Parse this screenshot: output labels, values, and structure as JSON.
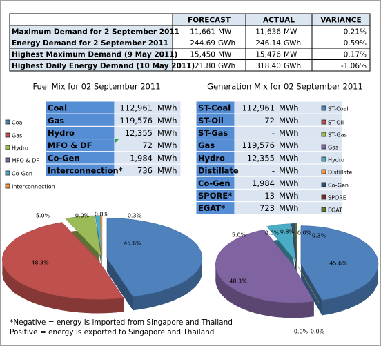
{
  "demand_table": {
    "columns": [
      "FORECAST",
      "ACTUAL",
      "VARIANCE"
    ],
    "rows": [
      [
        "Maximum Demand for 2 September 2011",
        "11,661",
        "MW",
        "11,636",
        "MW",
        "-0.21%"
      ],
      [
        "Energy Demand for 2 September 2011",
        "244.69",
        "GWh",
        "246.14",
        "GWh",
        "0.59%"
      ],
      [
        "Highest Maximum Demand (9 May 2011)",
        "15,450",
        "MW",
        "15,476",
        "MW",
        "0.17%"
      ],
      [
        "Highest Daily Energy Demand (10 May 2011)",
        "321.80",
        "GWh",
        "318.40",
        "GWh",
        "-1.06%"
      ]
    ]
  },
  "fuel_table": {
    "rows": [
      [
        "Coal",
        "112,961",
        "MWh"
      ],
      [
        "Gas",
        "119,576",
        "MWh"
      ],
      [
        "Hydro",
        "12,355",
        "MWh"
      ],
      [
        "MFO & DF",
        "72",
        "MWh"
      ],
      [
        "Co-Gen",
        "1,984",
        "MWh"
      ],
      [
        "Interconnection*",
        "736",
        "MWh"
      ]
    ]
  },
  "generation_table": {
    "rows": [
      [
        "ST-Coal",
        "112,961",
        "MWh"
      ],
      [
        "ST-Oil",
        "72",
        "MWh"
      ],
      [
        "ST-Gas",
        "-",
        "MWh"
      ],
      [
        "Gas",
        "119,576",
        "MWh"
      ],
      [
        "Hydro",
        "12,355",
        "MWh"
      ],
      [
        "Distillate",
        "-",
        "MWh"
      ],
      [
        "Co-Gen",
        "1,984",
        "MWh"
      ],
      [
        "SPORE*",
        "13",
        "MWh"
      ],
      [
        "EGAT*",
        "723",
        "MWh"
      ]
    ]
  },
  "chart_data": [
    {
      "type": "pie",
      "title": "Fuel Mix for 02 September 2011",
      "categories": [
        "Coal",
        "Gas",
        "Hydro",
        "MFO & DF",
        "Co-Gen",
        "Interconnection"
      ],
      "values": [
        45.6,
        48.3,
        5.0,
        0.0,
        0.8,
        0.3
      ],
      "value_labels": [
        "45.6%",
        "48.3%",
        "5.0%",
        "0.0%",
        "0.8%",
        "0.3%"
      ],
      "colors": [
        "#4f81bd",
        "#c0504d",
        "#9bbb59",
        "#8064a2",
        "#4bacc6",
        "#f79646"
      ]
    },
    {
      "type": "pie",
      "title": "Generation Mix for 02 September 2011",
      "categories": [
        "ST-Coal",
        "ST-Oil",
        "ST-Gas",
        "Gas",
        "Hydro",
        "Distillate",
        "Co-Gen",
        "SPORE",
        "EGAT"
      ],
      "values": [
        45.6,
        0.0,
        0.0,
        48.3,
        5.0,
        0.0,
        0.8,
        0.0,
        0.3
      ],
      "value_labels": [
        "45.6%",
        "0.0%",
        "0.0%",
        "48.3%",
        "5.0%",
        "0.0%",
        "0.8%",
        "0.0%",
        "0.3%"
      ],
      "colors": [
        "#4f81bd",
        "#c0504d",
        "#9bbb59",
        "#8064a2",
        "#4bacc6",
        "#f79646",
        "#2c4d75",
        "#772c2a",
        "#5f7530"
      ]
    }
  ],
  "footnote": [
    "*Negative = energy is imported from Singapore and Thailand",
    "Positive = energy is exported to Singapore and Thailand"
  ]
}
